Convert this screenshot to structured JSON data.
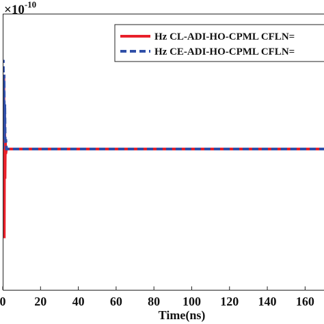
{
  "chart_data": {
    "type": "line",
    "title": "",
    "xlabel": "Time(ns)",
    "ylabel": "",
    "y_exponent": {
      "base": "×10",
      "power": "-10"
    },
    "xlim": [
      0,
      170
    ],
    "x_ticks": [
      0,
      20,
      40,
      60,
      80,
      100,
      120,
      140,
      160
    ],
    "x_tick_labels": [
      "0",
      "20",
      "40",
      "60",
      "80",
      "100",
      "120",
      "140",
      "160"
    ],
    "ylim": [
      -1,
      1
    ],
    "grid": false,
    "legend_position": "top-right",
    "series": [
      {
        "name": "Hz CL-ADI-HO-CPML CFLN=",
        "color": "#e8202a",
        "style": "solid",
        "x": [
          0,
          0.2,
          0.4,
          0.6,
          0.8,
          1.0,
          1.2,
          1.4,
          1.6,
          2.0,
          3,
          170
        ],
        "y": [
          0,
          0.5,
          -0.7,
          0.75,
          -0.9,
          0.4,
          -0.3,
          0.1,
          -0.05,
          0,
          0,
          0
        ]
      },
      {
        "name": "Hz CE-ADI-HO-CPML CFLN=",
        "color": "#2f4fa8",
        "style": "dashed",
        "x": [
          0,
          0.3,
          0.5,
          0.7,
          0.9,
          1.1,
          1.3,
          1.6,
          2.0,
          3,
          170
        ],
        "y": [
          0,
          0.9,
          0.2,
          0.75,
          0.1,
          0.45,
          0.05,
          0.1,
          0,
          0,
          0
        ]
      }
    ]
  }
}
